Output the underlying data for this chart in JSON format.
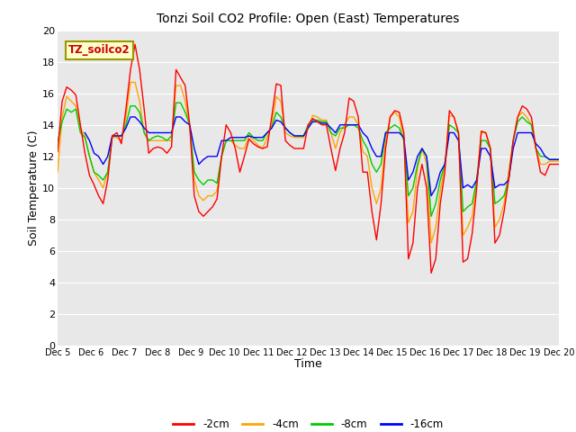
{
  "title": "Tonzi Soil CO2 Profile: Open (East) Temperatures",
  "xlabel": "Time",
  "ylabel": "Soil Temperature (C)",
  "ylim": [
    0,
    20
  ],
  "background_color": "#ffffff",
  "plot_bg_color": "#e8e8e8",
  "legend_label": "TZ_soilco2",
  "series_labels": [
    "-2cm",
    "-4cm",
    "-8cm",
    "-16cm"
  ],
  "series_colors": [
    "#ff0000",
    "#ffa500",
    "#00cc00",
    "#0000ff"
  ],
  "xtick_labels": [
    "Dec 5",
    "Dec 6",
    "Dec 7",
    "Dec 8",
    "Dec 9",
    "Dec 10",
    "Dec 11",
    "Dec 12",
    "Dec 13",
    "Dec 14",
    "Dec 15",
    "Dec 16",
    "Dec 17",
    "Dec 18",
    "Dec 19",
    "Dec 20"
  ],
  "ytick_values": [
    0,
    2,
    4,
    6,
    8,
    10,
    12,
    14,
    16,
    18,
    20
  ],
  "t_2cm": [
    12.3,
    15.5,
    16.4,
    16.2,
    15.9,
    14.0,
    12.2,
    10.8,
    10.2,
    9.5,
    9.0,
    10.5,
    13.3,
    13.5,
    12.8,
    15.0,
    17.5,
    19.1,
    17.5,
    15.0,
    12.2,
    12.5,
    12.6,
    12.5,
    12.2,
    12.6,
    17.5,
    17.0,
    16.5,
    14.0,
    9.5,
    8.5,
    8.2,
    8.5,
    8.8,
    9.3,
    12.0,
    14.0,
    13.5,
    12.5,
    11.0,
    12.0,
    13.1,
    12.8,
    12.6,
    12.5,
    12.6,
    14.5,
    16.6,
    16.5,
    13.0,
    12.7,
    12.5,
    12.5,
    12.5,
    14.0,
    14.4,
    14.2,
    14.0,
    14.0,
    12.5,
    11.1,
    12.5,
    13.5,
    15.7,
    15.5,
    14.5,
    11.0,
    11.0,
    8.5,
    6.7,
    9.0,
    12.5,
    14.5,
    14.9,
    14.8,
    13.5,
    5.5,
    6.5,
    10.0,
    11.5,
    10.0,
    4.6,
    5.5,
    9.0,
    11.0,
    14.9,
    14.5,
    13.5,
    5.3,
    5.5,
    7.1,
    10.0,
    13.6,
    13.5,
    12.5,
    6.5,
    7.0,
    8.5,
    10.5,
    13.0,
    14.5,
    15.2,
    15.0,
    14.5,
    12.5,
    11.0,
    10.8,
    11.5,
    11.5,
    11.5
  ],
  "t_4cm": [
    11.0,
    14.5,
    15.8,
    15.5,
    15.2,
    13.8,
    13.3,
    12.0,
    11.0,
    10.5,
    10.0,
    11.0,
    13.2,
    13.2,
    13.0,
    14.5,
    16.7,
    16.7,
    15.5,
    13.5,
    13.0,
    13.0,
    13.0,
    13.0,
    13.0,
    13.0,
    16.5,
    16.5,
    15.5,
    13.8,
    10.5,
    9.5,
    9.2,
    9.5,
    9.5,
    9.8,
    12.0,
    13.0,
    13.0,
    12.7,
    12.5,
    12.5,
    13.3,
    13.0,
    12.7,
    12.5,
    13.2,
    14.0,
    15.8,
    15.5,
    13.5,
    13.3,
    13.2,
    13.2,
    13.2,
    13.8,
    14.6,
    14.5,
    14.3,
    14.3,
    13.5,
    12.5,
    13.5,
    14.0,
    14.5,
    14.5,
    14.0,
    12.3,
    12.0,
    10.0,
    9.0,
    10.0,
    13.0,
    14.5,
    14.8,
    14.5,
    13.0,
    7.8,
    8.5,
    11.2,
    12.5,
    11.5,
    6.5,
    7.5,
    9.8,
    11.5,
    14.6,
    14.5,
    13.5,
    7.0,
    7.5,
    8.2,
    10.5,
    13.5,
    13.5,
    12.5,
    7.5,
    8.0,
    9.0,
    11.0,
    13.0,
    14.5,
    14.8,
    14.5,
    14.0,
    12.5,
    11.5,
    11.5,
    11.7,
    11.7,
    11.7
  ],
  "t_8cm": [
    12.9,
    14.2,
    15.0,
    14.8,
    15.0,
    13.5,
    13.2,
    12.0,
    11.0,
    10.8,
    10.5,
    11.0,
    13.3,
    13.3,
    13.3,
    14.0,
    15.2,
    15.2,
    14.8,
    13.5,
    13.0,
    13.2,
    13.3,
    13.2,
    13.0,
    13.3,
    15.4,
    15.4,
    14.8,
    14.0,
    11.0,
    10.5,
    10.2,
    10.5,
    10.5,
    10.3,
    12.0,
    13.0,
    13.0,
    13.0,
    13.0,
    13.0,
    13.5,
    13.2,
    13.0,
    13.0,
    13.5,
    13.8,
    14.8,
    14.5,
    13.8,
    13.5,
    13.3,
    13.3,
    13.3,
    14.0,
    14.3,
    14.3,
    14.2,
    14.2,
    13.5,
    13.3,
    13.8,
    13.8,
    14.0,
    14.0,
    13.8,
    13.0,
    12.5,
    11.5,
    11.0,
    11.5,
    13.5,
    13.8,
    14.0,
    13.8,
    13.0,
    9.5,
    10.0,
    11.5,
    12.5,
    12.0,
    8.2,
    9.0,
    10.5,
    11.5,
    14.0,
    13.8,
    13.5,
    8.5,
    8.8,
    9.0,
    10.5,
    13.0,
    13.0,
    12.5,
    9.0,
    9.2,
    9.5,
    10.5,
    13.0,
    14.2,
    14.5,
    14.2,
    14.0,
    12.5,
    12.0,
    12.0,
    11.8,
    11.8,
    11.8
  ],
  "t_16cm": [
    null,
    null,
    null,
    null,
    null,
    null,
    13.5,
    13.0,
    12.2,
    12.0,
    11.5,
    12.0,
    13.3,
    13.3,
    13.3,
    13.8,
    14.5,
    14.5,
    14.2,
    13.8,
    13.5,
    13.5,
    13.5,
    13.5,
    13.5,
    13.5,
    14.5,
    14.5,
    14.2,
    14.0,
    12.5,
    11.5,
    11.8,
    12.0,
    12.0,
    12.0,
    13.0,
    13.0,
    13.2,
    13.2,
    13.2,
    13.2,
    13.3,
    13.2,
    13.2,
    13.2,
    13.5,
    13.8,
    14.3,
    14.2,
    13.8,
    13.5,
    13.3,
    13.3,
    13.3,
    13.8,
    14.2,
    14.2,
    14.1,
    14.1,
    13.8,
    13.5,
    14.0,
    14.0,
    14.0,
    14.0,
    14.0,
    13.5,
    13.2,
    12.5,
    12.0,
    12.0,
    13.5,
    13.5,
    13.5,
    13.5,
    13.2,
    10.5,
    11.0,
    12.0,
    12.5,
    12.0,
    9.5,
    10.0,
    11.0,
    11.5,
    13.5,
    13.5,
    13.0,
    10.0,
    10.2,
    10.0,
    10.5,
    12.5,
    12.5,
    12.0,
    10.0,
    10.2,
    10.2,
    10.5,
    12.5,
    13.5,
    13.5,
    13.5,
    13.5,
    12.8,
    12.5,
    12.0,
    11.8,
    11.8,
    11.8
  ]
}
